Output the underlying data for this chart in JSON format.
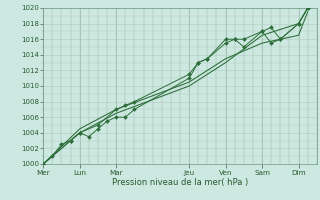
{
  "title": "",
  "xlabel": "Pression niveau de la mer( hPa )",
  "ylabel": "",
  "background_color": "#cce8e0",
  "grid_color": "#b0ccbf",
  "line_color": "#2d6e3a",
  "ylim": [
    1000,
    1020
  ],
  "day_labels": [
    "Mer",
    "Lun",
    "Mar",
    "Jeu",
    "Ven",
    "Sam",
    "Dim"
  ],
  "day_positions": [
    0,
    24,
    48,
    96,
    120,
    144,
    168
  ],
  "xlim": [
    0,
    180
  ],
  "series1_x": [
    0,
    6,
    12,
    18,
    24,
    30,
    36,
    42,
    48,
    54,
    60,
    96,
    102,
    108,
    120,
    126,
    132,
    144,
    150,
    156,
    168,
    174
  ],
  "series1_y": [
    1000,
    1001,
    1002.5,
    1003,
    1004,
    1003.5,
    1004.5,
    1005.5,
    1006,
    1006,
    1007,
    1011,
    1013,
    1013.5,
    1016,
    1016,
    1016,
    1017,
    1017.5,
    1016,
    1018,
    1020
  ],
  "series2_x": [
    0,
    24,
    48,
    96,
    120,
    144,
    168,
    174
  ],
  "series2_y": [
    1000,
    1004,
    1006.5,
    1010,
    1013,
    1016.5,
    1018,
    1020
  ],
  "series3_x": [
    0,
    24,
    48,
    96,
    120,
    144,
    168,
    174
  ],
  "series3_y": [
    1000,
    1004.5,
    1007,
    1010.5,
    1013.5,
    1015.5,
    1016.5,
    1019.5
  ],
  "series4_x": [
    0,
    18,
    24,
    36,
    48,
    54,
    60,
    96,
    102,
    108,
    120,
    126,
    132,
    144,
    150,
    156,
    168,
    174
  ],
  "series4_y": [
    1000,
    1003,
    1004,
    1005,
    1007,
    1007.5,
    1008,
    1011.5,
    1013,
    1013.5,
    1015.5,
    1016,
    1015,
    1017,
    1015.5,
    1016,
    1018,
    1020
  ]
}
